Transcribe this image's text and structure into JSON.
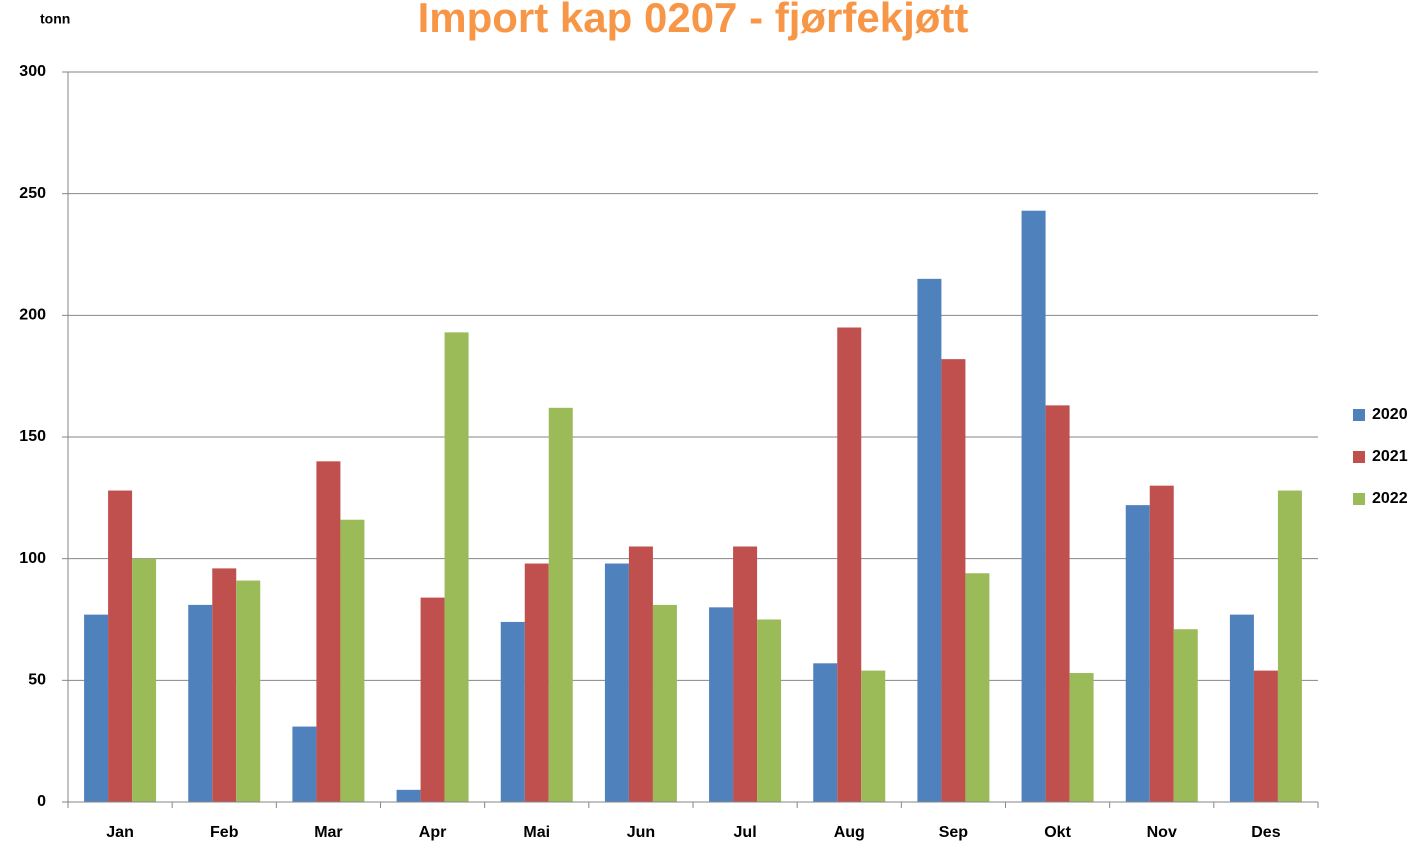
{
  "chart_data": {
    "type": "bar",
    "title": "Import kap 0207 - fjørfekjøtt",
    "y_label": "tonn",
    "categories": [
      "Jan",
      "Feb",
      "Mar",
      "Apr",
      "Mai",
      "Jun",
      "Jul",
      "Aug",
      "Sep",
      "Okt",
      "Nov",
      "Des"
    ],
    "series": [
      {
        "name": "2020",
        "color": "#4f81bd",
        "values": [
          77,
          81,
          31,
          5,
          74,
          98,
          80,
          57,
          215,
          243,
          122,
          77
        ]
      },
      {
        "name": "2021",
        "color": "#c0504d",
        "values": [
          128,
          96,
          140,
          84,
          98,
          105,
          105,
          195,
          182,
          163,
          130,
          54
        ]
      },
      {
        "name": "2022",
        "color": "#9bbb59",
        "values": [
          100,
          91,
          116,
          193,
          162,
          81,
          75,
          54,
          94,
          53,
          71,
          128
        ]
      }
    ],
    "ylim": [
      0,
      300
    ],
    "yticks": [
      0,
      50,
      100,
      150,
      200,
      250,
      300
    ],
    "grid": true,
    "legend": "right"
  }
}
